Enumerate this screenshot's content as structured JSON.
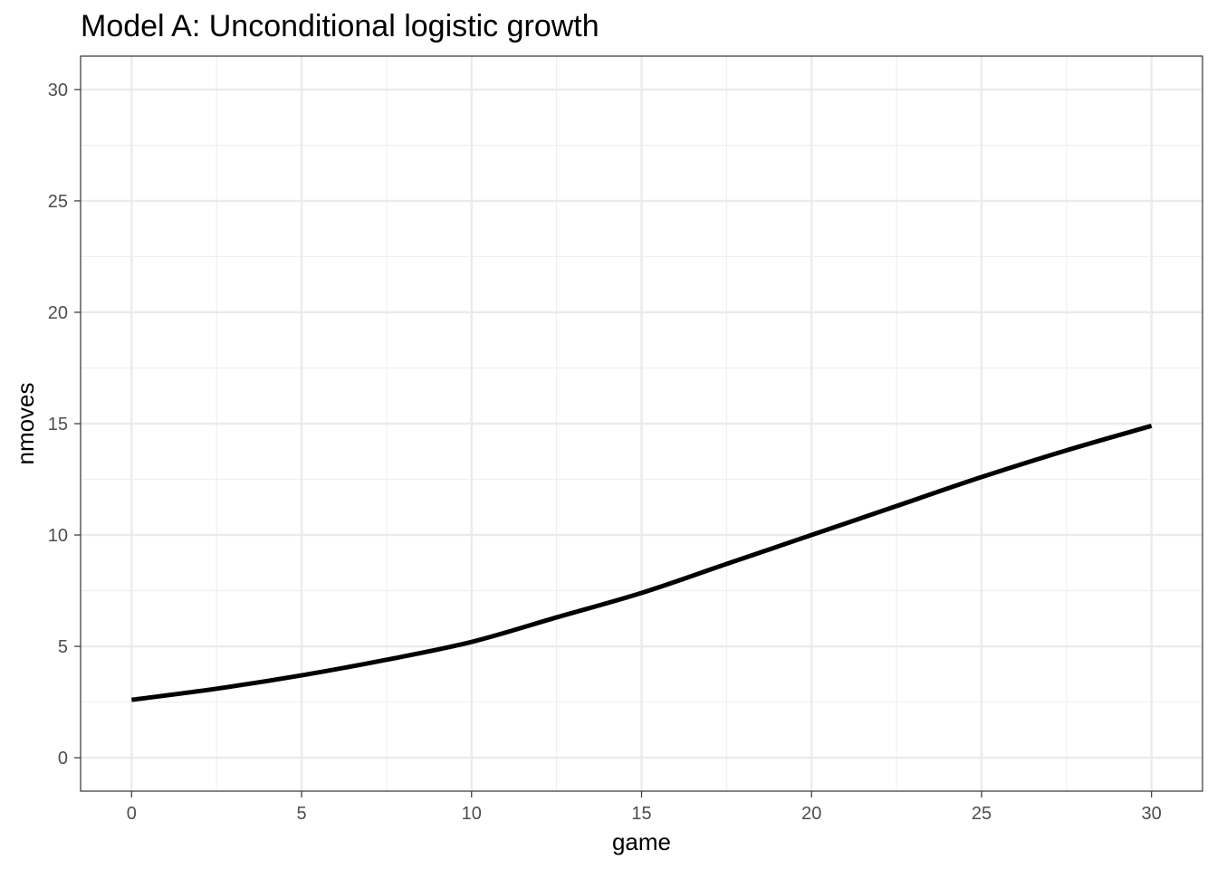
{
  "chart_data": {
    "type": "line",
    "title": "Model A: Unconditional logistic growth",
    "xlabel": "game",
    "ylabel": "nmoves",
    "xlim": [
      -1.5,
      31.5
    ],
    "ylim": [
      -1.5,
      31.5
    ],
    "x_ticks": [
      0,
      5,
      10,
      15,
      20,
      25,
      30
    ],
    "y_ticks": [
      0,
      5,
      10,
      15,
      20,
      25,
      30
    ],
    "x_tick_labels": [
      "0",
      "5",
      "10",
      "15",
      "20",
      "25",
      "30"
    ],
    "y_tick_labels": [
      "0",
      "5",
      "10",
      "15",
      "20",
      "25",
      "30"
    ],
    "grid": true,
    "legend": "none",
    "series": [
      {
        "color": "#000000",
        "x": [
          0,
          2.5,
          5,
          7.5,
          10,
          12.5,
          15,
          17.5,
          20,
          22.5,
          25,
          27.5,
          30
        ],
        "y": [
          2.6,
          3.1,
          3.7,
          4.4,
          5.2,
          6.3,
          7.4,
          8.7,
          10.0,
          11.3,
          12.6,
          13.8,
          14.9
        ]
      }
    ]
  }
}
